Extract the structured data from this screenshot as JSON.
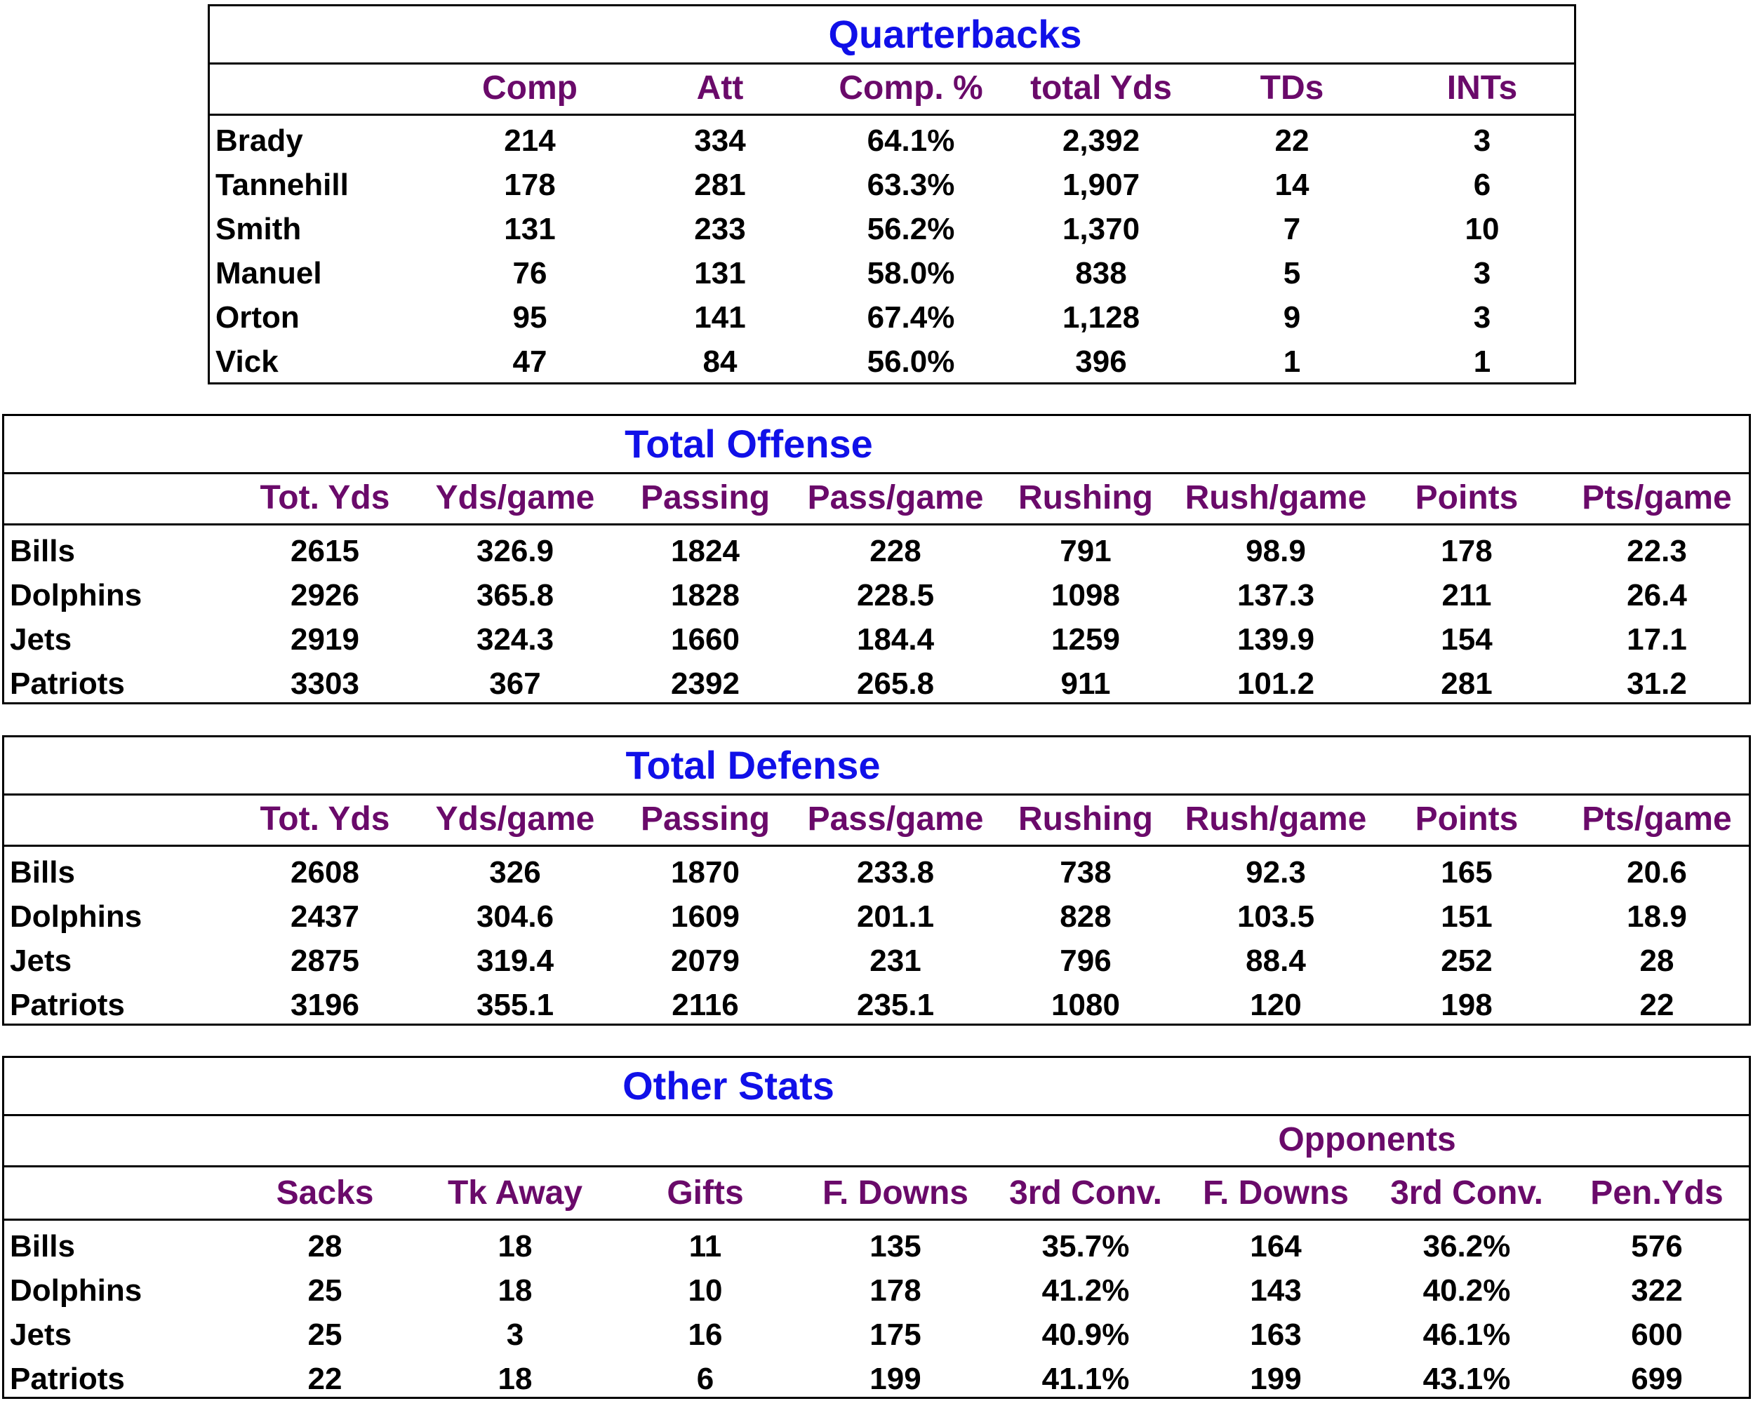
{
  "quarterbacks": {
    "title": "Quarterbacks",
    "columns": [
      "Comp",
      "Att",
      "Comp. %",
      "total Yds",
      "TDs",
      "INTs"
    ],
    "rows": [
      {
        "name": "Brady",
        "values": [
          "214",
          "334",
          "64.1%",
          "2,392",
          "22",
          "3"
        ]
      },
      {
        "name": "Tannehill",
        "values": [
          "178",
          "281",
          "63.3%",
          "1,907",
          "14",
          "6"
        ]
      },
      {
        "name": "Smith",
        "values": [
          "131",
          "233",
          "56.2%",
          "1,370",
          "7",
          "10"
        ]
      },
      {
        "name": "Manuel",
        "values": [
          "76",
          "131",
          "58.0%",
          "838",
          "5",
          "3"
        ]
      },
      {
        "name": "Orton",
        "values": [
          "95",
          "141",
          "67.4%",
          "1,128",
          "9",
          "3"
        ]
      },
      {
        "name": "Vick",
        "values": [
          "47",
          "84",
          "56.0%",
          "396",
          "1",
          "1"
        ]
      }
    ]
  },
  "total_offense": {
    "title": "Total Offense",
    "columns": [
      "Tot. Yds",
      "Yds/game",
      "Passing",
      "Pass/game",
      "Rushing",
      "Rush/game",
      "Points",
      "Pts/game"
    ],
    "rows": [
      {
        "name": "Bills",
        "values": [
          "2615",
          "326.9",
          "1824",
          "228",
          "791",
          "98.9",
          "178",
          "22.3"
        ]
      },
      {
        "name": "Dolphins",
        "values": [
          "2926",
          "365.8",
          "1828",
          "228.5",
          "1098",
          "137.3",
          "211",
          "26.4"
        ]
      },
      {
        "name": "Jets",
        "values": [
          "2919",
          "324.3",
          "1660",
          "184.4",
          "1259",
          "139.9",
          "154",
          "17.1"
        ]
      },
      {
        "name": "Patriots",
        "values": [
          "3303",
          "367",
          "2392",
          "265.8",
          "911",
          "101.2",
          "281",
          "31.2"
        ]
      }
    ]
  },
  "total_defense": {
    "title": "Total Defense",
    "columns": [
      "Tot. Yds",
      "Yds/game",
      "Passing",
      "Pass/game",
      "Rushing",
      "Rush/game",
      "Points",
      "Pts/game"
    ],
    "rows": [
      {
        "name": "Bills",
        "values": [
          "2608",
          "326",
          "1870",
          "233.8",
          "738",
          "92.3",
          "165",
          "20.6"
        ]
      },
      {
        "name": "Dolphins",
        "values": [
          "2437",
          "304.6",
          "1609",
          "201.1",
          "828",
          "103.5",
          "151",
          "18.9"
        ]
      },
      {
        "name": "Jets",
        "values": [
          "2875",
          "319.4",
          "2079",
          "231",
          "796",
          "88.4",
          "252",
          "28"
        ]
      },
      {
        "name": "Patriots",
        "values": [
          "3196",
          "355.1",
          "2116",
          "235.1",
          "1080",
          "120",
          "198",
          "22"
        ]
      }
    ]
  },
  "other_stats": {
    "title": "Other Stats",
    "group_label": "Opponents",
    "columns": [
      "Sacks",
      "Tk Away",
      "Gifts",
      "F. Downs",
      "3rd Conv.",
      "F. Downs",
      "3rd Conv.",
      "Pen.Yds"
    ],
    "rows": [
      {
        "name": "Bills",
        "values": [
          "28",
          "18",
          "11",
          "135",
          "35.7%",
          "164",
          "36.2%",
          "576"
        ]
      },
      {
        "name": "Dolphins",
        "values": [
          "25",
          "18",
          "10",
          "178",
          "41.2%",
          "143",
          "40.2%",
          "322"
        ]
      },
      {
        "name": "Jets",
        "values": [
          "25",
          "3",
          "16",
          "175",
          "40.9%",
          "163",
          "46.1%",
          "600"
        ]
      },
      {
        "name": "Patriots",
        "values": [
          "22",
          "18",
          "6",
          "199",
          "41.1%",
          "199",
          "43.1%",
          "699"
        ]
      }
    ]
  }
}
